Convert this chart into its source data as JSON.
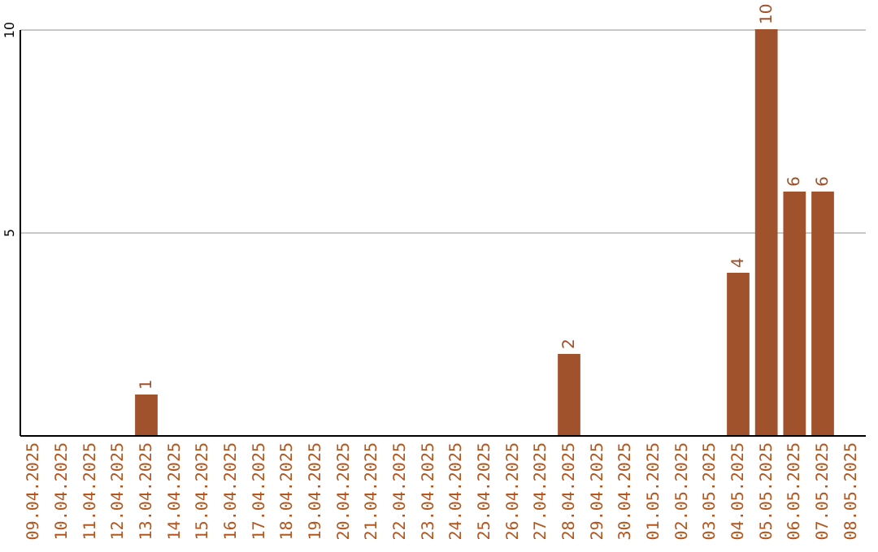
{
  "chart_data": {
    "type": "bar",
    "categories": [
      "09.04.2025",
      "10.04.2025",
      "11.04.2025",
      "12.04.2025",
      "13.04.2025",
      "14.04.2025",
      "15.04.2025",
      "16.04.2025",
      "17.04.2025",
      "18.04.2025",
      "19.04.2025",
      "20.04.2025",
      "21.04.2025",
      "22.04.2025",
      "23.04.2025",
      "24.04.2025",
      "25.04.2025",
      "26.04.2025",
      "27.04.2025",
      "28.04.2025",
      "29.04.2025",
      "30.04.2025",
      "01.05.2025",
      "02.05.2025",
      "03.05.2025",
      "04.05.2025",
      "05.05.2025",
      "06.05.2025",
      "07.05.2025",
      "08.05.2025"
    ],
    "values": [
      0,
      0,
      0,
      0,
      1,
      0,
      0,
      0,
      0,
      0,
      0,
      0,
      0,
      0,
      0,
      0,
      0,
      0,
      0,
      2,
      0,
      0,
      0,
      0,
      0,
      4,
      10,
      6,
      6,
      0
    ],
    "value_labels": [
      null,
      null,
      null,
      null,
      "1",
      null,
      null,
      null,
      null,
      null,
      null,
      null,
      null,
      null,
      null,
      null,
      null,
      null,
      null,
      "2",
      null,
      null,
      null,
      null,
      null,
      "4",
      "10",
      "6",
      "6",
      null
    ],
    "color": "#a0522d",
    "ylim": [
      0,
      10
    ],
    "yticks": [
      5,
      10
    ],
    "grid": "y"
  }
}
